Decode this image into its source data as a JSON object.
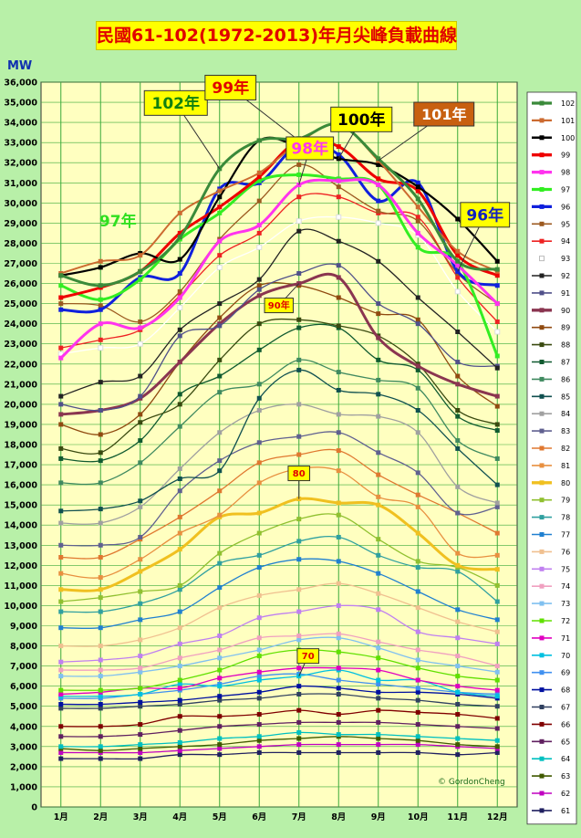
{
  "title": "民國61-102(1972-2013)年月尖峰負載曲線",
  "credit": "© GordonCheng",
  "unit": "MW",
  "chart_data": {
    "type": "line",
    "title": "民國61-102(1972-2013)年月尖峰負載曲線",
    "ylabel": "MW",
    "categories": [
      "1月",
      "2月",
      "3月",
      "4月",
      "5月",
      "6月",
      "7月",
      "8月",
      "9月",
      "10月",
      "11月",
      "12月"
    ],
    "ylim": [
      0,
      36000
    ],
    "ytick_step": 1000,
    "grid": true,
    "legend_position": "right",
    "series": [
      {
        "name": "102",
        "color": "#3a8a3a",
        "values": [
          26400,
          25900,
          26600,
          28300,
          31700,
          33100,
          33200,
          33900,
          32200,
          30200,
          27100,
          26700
        ]
      },
      {
        "name": "101",
        "color": "#cc6a30",
        "values": [
          26500,
          27100,
          27400,
          29500,
          30600,
          31500,
          33000,
          33900,
          32100,
          29800,
          27600,
          26600
        ]
      },
      {
        "name": "100",
        "color": "#000000",
        "values": [
          26400,
          26800,
          27500,
          27200,
          30300,
          33100,
          32800,
          32200,
          31900,
          30800,
          29200,
          27100
        ]
      },
      {
        "name": "99",
        "color": "#ee0000",
        "values": [
          25300,
          25800,
          26600,
          28500,
          29800,
          31300,
          33100,
          32800,
          31200,
          30600,
          27400,
          26400
        ]
      },
      {
        "name": "98",
        "color": "#ff33ee",
        "values": [
          22300,
          24000,
          23800,
          25300,
          28100,
          28900,
          30900,
          31100,
          30900,
          28500,
          26900,
          25000
        ]
      },
      {
        "name": "97",
        "color": "#33ee22",
        "values": [
          25900,
          25200,
          26200,
          28200,
          29500,
          31100,
          31400,
          31200,
          30900,
          27800,
          27100,
          22400
        ]
      },
      {
        "name": "96",
        "color": "#1020dd",
        "values": [
          24700,
          24700,
          26300,
          26500,
          30700,
          31000,
          32900,
          32400,
          30100,
          31000,
          26600,
          25900
        ]
      },
      {
        "name": "95",
        "color": "#9c5a20",
        "values": [
          25000,
          24900,
          24100,
          25600,
          28200,
          30100,
          31900,
          30800,
          29600,
          29100,
          26500,
          25000
        ]
      },
      {
        "name": "94",
        "color": "#ee2222",
        "values": [
          22800,
          23200,
          23700,
          25400,
          27400,
          28500,
          30300,
          30300,
          29500,
          29300,
          26300,
          24100
        ]
      },
      {
        "name": "93",
        "color": "#ffffff",
        "values": [
          22500,
          22800,
          23000,
          24800,
          26800,
          27800,
          29100,
          29300,
          29000,
          28400,
          25600,
          23600
        ]
      },
      {
        "name": "92",
        "color": "#222222",
        "values": [
          20400,
          21100,
          21400,
          23700,
          25000,
          26200,
          28600,
          28100,
          27100,
          25300,
          23600,
          21800
        ]
      },
      {
        "name": "91",
        "color": "#50508a",
        "values": [
          20000,
          19700,
          20400,
          23400,
          23900,
          25700,
          26500,
          26900,
          25000,
          24000,
          22100,
          21900
        ]
      },
      {
        "name": "90",
        "color": "#8a3550",
        "values": [
          19500,
          19700,
          20300,
          22100,
          24000,
          25400,
          26000,
          26300,
          23300,
          21900,
          21000,
          20400
        ]
      },
      {
        "name": "89",
        "color": "#904a10",
        "values": [
          19000,
          18500,
          19500,
          22100,
          24300,
          25900,
          25900,
          25300,
          24500,
          24200,
          21400,
          19900
        ]
      },
      {
        "name": "88",
        "color": "#3a4a10",
        "values": [
          17800,
          17600,
          19100,
          20000,
          22200,
          24000,
          24200,
          23900,
          23400,
          22000,
          19700,
          19000
        ]
      },
      {
        "name": "87",
        "color": "#105a30",
        "values": [
          17300,
          17200,
          18200,
          20500,
          21400,
          22700,
          23800,
          23800,
          22200,
          21700,
          19400,
          18700
        ]
      },
      {
        "name": "86",
        "color": "#408a60",
        "values": [
          16100,
          16100,
          17100,
          18900,
          20600,
          21000,
          22200,
          21600,
          21200,
          20800,
          18200,
          17300
        ]
      },
      {
        "name": "85",
        "color": "#105050",
        "values": [
          14700,
          14800,
          15200,
          16300,
          16700,
          20300,
          21700,
          20700,
          20500,
          19700,
          17800,
          16000
        ]
      },
      {
        "name": "84",
        "color": "#a0a0a0",
        "values": [
          14100,
          14100,
          14900,
          16800,
          18600,
          19700,
          20000,
          19500,
          19400,
          18600,
          15900,
          15100
        ]
      },
      {
        "name": "83",
        "color": "#606090",
        "values": [
          13000,
          13000,
          13400,
          15700,
          17200,
          18100,
          18400,
          18600,
          17600,
          16600,
          14600,
          14900
        ]
      },
      {
        "name": "82",
        "color": "#e07830",
        "values": [
          12400,
          12400,
          13300,
          14400,
          15700,
          17100,
          17500,
          17700,
          16500,
          15500,
          14600,
          13600
        ]
      },
      {
        "name": "81",
        "color": "#e89040",
        "values": [
          11600,
          11400,
          12300,
          13600,
          14500,
          16100,
          16800,
          16700,
          15400,
          14900,
          12600,
          12500
        ]
      },
      {
        "name": "80",
        "color": "#f0c020",
        "values": [
          10800,
          10800,
          11700,
          12800,
          14400,
          14600,
          15300,
          15100,
          15000,
          13600,
          12000,
          11800
        ]
      },
      {
        "name": "79",
        "color": "#90c030",
        "values": [
          10200,
          10400,
          10700,
          11000,
          12600,
          13600,
          14300,
          14500,
          13300,
          12200,
          11900,
          11000
        ]
      },
      {
        "name": "78",
        "color": "#30a0a0",
        "values": [
          9700,
          9700,
          10100,
          10800,
          12100,
          12500,
          13200,
          13400,
          12500,
          11900,
          11700,
          10200
        ]
      },
      {
        "name": "77",
        "color": "#2080d0",
        "values": [
          8900,
          8900,
          9300,
          9700,
          10900,
          11900,
          12300,
          12200,
          11600,
          10700,
          9800,
          9300
        ]
      },
      {
        "name": "76",
        "color": "#f0c090",
        "values": [
          8000,
          8000,
          8300,
          8900,
          9900,
          10500,
          10800,
          11100,
          10600,
          9900,
          9200,
          8700
        ]
      },
      {
        "name": "75",
        "color": "#c080f0",
        "values": [
          7200,
          7300,
          7500,
          8100,
          8500,
          9400,
          9700,
          10000,
          9800,
          8700,
          8400,
          8100
        ]
      },
      {
        "name": "74",
        "color": "#f0a0c0",
        "values": [
          6800,
          6800,
          6900,
          7400,
          7800,
          8400,
          8500,
          8600,
          8200,
          7800,
          7500,
          7000
        ]
      },
      {
        "name": "73",
        "color": "#80c0f0",
        "values": [
          6500,
          6500,
          6700,
          7000,
          7400,
          7800,
          8300,
          8400,
          7900,
          7300,
          7000,
          6700
        ]
      },
      {
        "name": "72",
        "color": "#60e000",
        "values": [
          5800,
          5800,
          5900,
          6300,
          6800,
          7500,
          7800,
          7700,
          7400,
          6900,
          6500,
          6300
        ]
      },
      {
        "name": "71",
        "color": "#e000c0",
        "values": [
          5600,
          5700,
          5900,
          5900,
          6400,
          6700,
          6900,
          6900,
          6800,
          6300,
          6000,
          5800
        ]
      },
      {
        "name": "70",
        "color": "#00c0e0",
        "values": [
          5500,
          5500,
          5600,
          6100,
          6000,
          6300,
          6500,
          6800,
          6300,
          6300,
          5700,
          5500
        ]
      },
      {
        "name": "69",
        "color": "#4090f0",
        "values": [
          5400,
          5400,
          5600,
          5800,
          6100,
          6500,
          6600,
          6300,
          6100,
          5900,
          5700,
          5600
        ]
      },
      {
        "name": "68",
        "color": "#0010a0",
        "values": [
          5100,
          5100,
          5200,
          5300,
          5500,
          5700,
          6000,
          5900,
          5700,
          5700,
          5600,
          5400
        ]
      },
      {
        "name": "67",
        "color": "#304060",
        "values": [
          4900,
          4900,
          5000,
          5100,
          5300,
          5400,
          5600,
          5600,
          5400,
          5300,
          5100,
          5000
        ]
      },
      {
        "name": "66",
        "color": "#800000",
        "values": [
          4000,
          4000,
          4100,
          4500,
          4500,
          4600,
          4800,
          4600,
          4800,
          4700,
          4600,
          4400
        ]
      },
      {
        "name": "65",
        "color": "#602060",
        "values": [
          3500,
          3500,
          3600,
          3800,
          4000,
          4100,
          4200,
          4200,
          4200,
          4100,
          4000,
          3900
        ]
      },
      {
        "name": "64",
        "color": "#00c0c0",
        "values": [
          3000,
          3000,
          3100,
          3200,
          3400,
          3500,
          3700,
          3600,
          3600,
          3500,
          3400,
          3300
        ]
      },
      {
        "name": "63",
        "color": "#405a00",
        "values": [
          2900,
          2800,
          2900,
          3000,
          3100,
          3300,
          3400,
          3500,
          3400,
          3300,
          3100,
          3000
        ]
      },
      {
        "name": "62",
        "color": "#c000c0",
        "values": [
          2700,
          2700,
          2700,
          2800,
          2900,
          3000,
          3100,
          3100,
          3100,
          3100,
          3000,
          2900
        ]
      },
      {
        "name": "61",
        "color": "#202060",
        "values": [
          2400,
          2400,
          2400,
          2600,
          2600,
          2700,
          2700,
          2700,
          2700,
          2700,
          2600,
          2700
        ]
      }
    ],
    "annotations": [
      {
        "text": "102年",
        "series": "102",
        "month": "5月",
        "style": "yellow-green"
      },
      {
        "text": "99年",
        "series": "99",
        "month": "7月",
        "style": "red"
      },
      {
        "text": "100年",
        "series": "100",
        "month": "8月",
        "style": "yellow-black"
      },
      {
        "text": "101年",
        "series": "101",
        "month": "9月",
        "style": "brown"
      },
      {
        "text": "96年",
        "series": "96",
        "month": "11月",
        "style": "yellow-blue"
      },
      {
        "text": "97年",
        "series": "97",
        "month": "4月",
        "style": "plain-green"
      },
      {
        "text": "98年",
        "series": "98",
        "month": "7月",
        "style": "yellow-magenta"
      },
      {
        "text": "90年",
        "series": "90",
        "month": "7月",
        "style": "yellow-red-small"
      },
      {
        "text": "80",
        "series": "80",
        "month": "7月",
        "style": "yellow-red-small"
      },
      {
        "text": "70",
        "series": "70",
        "month": "7月",
        "style": "yellow-red-small"
      }
    ]
  }
}
